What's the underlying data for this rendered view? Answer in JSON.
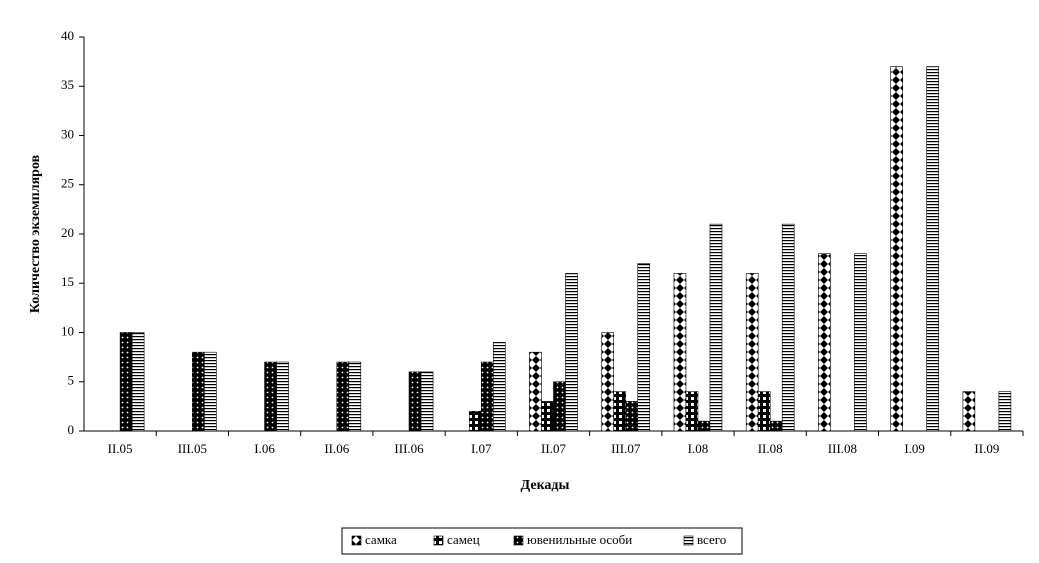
{
  "chart_data": {
    "type": "bar",
    "ylabel": "Количество экземпляров",
    "xlabel": "Декады",
    "categories": [
      "II.05",
      "III.05",
      "I.06",
      "II.06",
      "III.06",
      "I.07",
      "II.07",
      "III.07",
      "I.08",
      "II.08",
      "III.08",
      "I.09",
      "II.09"
    ],
    "series": [
      {
        "name": "самка",
        "color": "#000000",
        "values": [
          null,
          null,
          null,
          null,
          null,
          null,
          8,
          10,
          16,
          16,
          18,
          37,
          4
        ]
      },
      {
        "name": "самец",
        "color": "#000000",
        "values": [
          null,
          null,
          null,
          null,
          null,
          2,
          3,
          4,
          4,
          4,
          null,
          null,
          null
        ]
      },
      {
        "name": "ювенильные особи",
        "color": "#000000",
        "values": [
          10,
          8,
          7,
          7,
          6,
          7,
          5,
          3,
          1,
          1,
          null,
          null,
          null
        ]
      },
      {
        "name": "всего",
        "color": "#000000",
        "values": [
          10,
          8,
          7,
          7,
          6,
          9,
          16,
          17,
          21,
          21,
          18,
          37,
          4
        ]
      }
    ],
    "ylim": [
      0,
      40
    ],
    "yticks": [
      0,
      5,
      10,
      15,
      20,
      25,
      30,
      35,
      40
    ],
    "legend": "bottom"
  }
}
